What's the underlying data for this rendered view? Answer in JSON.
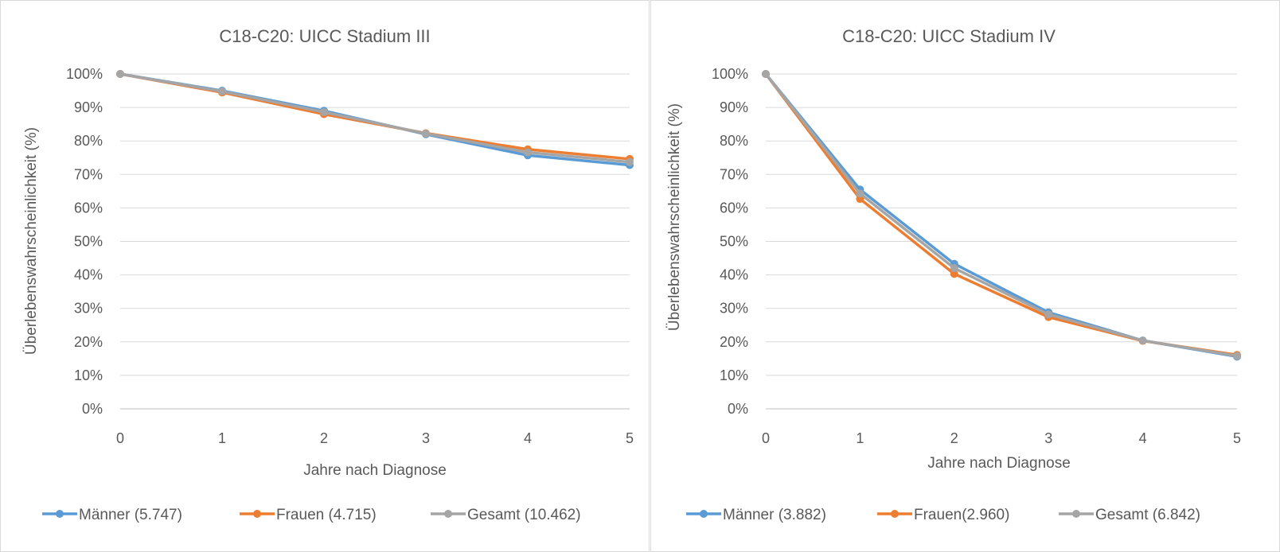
{
  "chart_data": [
    {
      "type": "line",
      "title": "C18-C20: UICC Stadium III",
      "xlabel": "Jahre nach Diagnose",
      "ylabel": "Überlebenswahrscheinlichkeit (%)",
      "categories": [
        "0",
        "1",
        "2",
        "3",
        "4",
        "5"
      ],
      "ylim": [
        0,
        100
      ],
      "yticks": [
        "0%",
        "10%",
        "20%",
        "30%",
        "40%",
        "50%",
        "60%",
        "70%",
        "80%",
        "90%",
        "100%"
      ],
      "grid": true,
      "legend_position": "bottom",
      "series": [
        {
          "name": "Männer (5.747)",
          "color": "#5b9bd5",
          "values": [
            100,
            95,
            89,
            82,
            75.7,
            72.8
          ]
        },
        {
          "name": "Frauen (4.715)",
          "color": "#ed7d31",
          "values": [
            100,
            94.5,
            88,
            82.3,
            77.5,
            74.6
          ]
        },
        {
          "name": "Gesamt (10.462)",
          "color": "#a5a5a5",
          "values": [
            100,
            94.8,
            88.6,
            82.2,
            76.6,
            73.7
          ]
        }
      ]
    },
    {
      "type": "line",
      "title": "C18-C20: UICC Stadium IV",
      "xlabel": "Jahre nach Diagnose",
      "ylabel": "Überlebenswahrscheinlichkeit (%)",
      "categories": [
        "0",
        "1",
        "2",
        "3",
        "4",
        "5"
      ],
      "ylim": [
        0,
        100
      ],
      "yticks": [
        "0%",
        "10%",
        "20%",
        "30%",
        "40%",
        "50%",
        "60%",
        "70%",
        "80%",
        "90%",
        "100%"
      ],
      "grid": true,
      "legend_position": "bottom",
      "series": [
        {
          "name": "Männer (3.882)",
          "color": "#5b9bd5",
          "values": [
            100,
            65.5,
            43.3,
            28.8,
            20.4,
            15.6
          ]
        },
        {
          "name": "Frauen(2.960)",
          "color": "#ed7d31",
          "values": [
            100,
            62.7,
            40.3,
            27.4,
            20.3,
            16.1
          ]
        },
        {
          "name": "Gesamt (6.842)",
          "color": "#a5a5a5",
          "values": [
            100,
            64.3,
            42,
            28.2,
            20.4,
            15.8
          ]
        }
      ]
    }
  ]
}
